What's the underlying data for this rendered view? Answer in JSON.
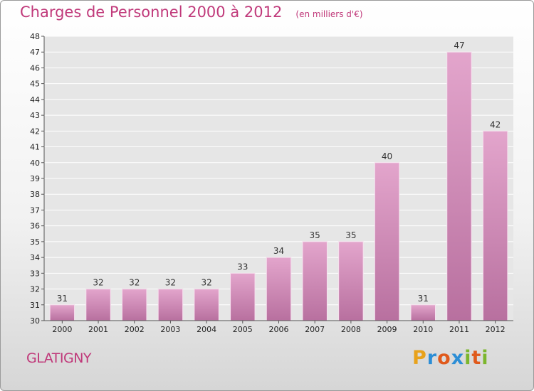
{
  "chart_data": {
    "type": "bar",
    "title": "Charges de Personnel 2000 à 2012",
    "unit": "(en milliers d'€)",
    "categories": [
      "2000",
      "2001",
      "2002",
      "2003",
      "2004",
      "2005",
      "2006",
      "2007",
      "2008",
      "2009",
      "2010",
      "2011",
      "2012"
    ],
    "values": [
      31,
      32,
      32,
      32,
      32,
      33,
      34,
      35,
      35,
      40,
      31,
      47,
      42
    ],
    "ylim": [
      30,
      48
    ],
    "yticks": [
      30,
      31,
      32,
      33,
      34,
      35,
      36,
      37,
      38,
      39,
      40,
      41,
      42,
      43,
      44,
      45,
      46,
      47,
      48
    ],
    "grid": true,
    "bar_color": "#d48ab4"
  },
  "commune": "GLATIGNY",
  "logo": {
    "letters": [
      "P",
      "r",
      "o",
      "x",
      "i",
      "t",
      "i"
    ],
    "colors": [
      "#e8a21b",
      "#2c8ed6",
      "#e05a1c",
      "#2c8ed6",
      "#7cb62d",
      "#e05a1c",
      "#7cb62d"
    ]
  }
}
